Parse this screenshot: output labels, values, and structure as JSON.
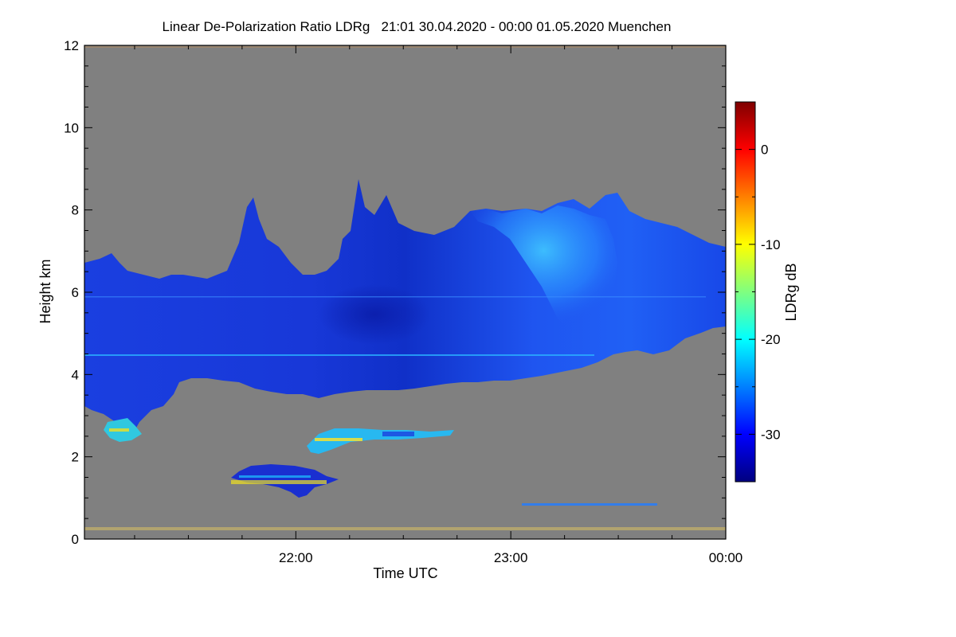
{
  "chart_data": {
    "type": "heatmap",
    "title": "Linear De-Polarization Ratio LDRg   21:01 30.04.2020 - 00:00 01.05.2020 Muenchen",
    "xlabel": "Time UTC",
    "ylabel": "Height km",
    "x_ticks": [
      "22:00",
      "23:00",
      "00:00"
    ],
    "y_ticks": [
      "0",
      "2",
      "4",
      "6",
      "8",
      "10",
      "12"
    ],
    "ylim": [
      0,
      12
    ],
    "xlim": [
      "21:01",
      "00:00"
    ],
    "background_color": "#808080",
    "colorbar": {
      "label": "LDRg dB",
      "ticks": [
        "0",
        "-10",
        "-20",
        "-30"
      ],
      "range": [
        -35,
        5
      ],
      "colormap": "jet"
    },
    "features": [
      {
        "name": "main-cloud-layer",
        "time_start": "21:01",
        "time_end": "00:00",
        "height_base_km": [
          3.0,
          5.3
        ],
        "height_top_km": [
          6.5,
          8.3
        ],
        "ldr_db": -30
      },
      {
        "name": "cloud-top-bright-region",
        "time_start": "23:00",
        "time_end": "23:30",
        "height_km": [
          5.5,
          8.0
        ],
        "ldr_db": -22
      },
      {
        "name": "low-cloud-patch-1",
        "time_center": "22:00",
        "height_km": [
          1.2,
          1.8
        ],
        "ldr_db": -28
      },
      {
        "name": "low-cloud-patch-2",
        "time_center": "22:20",
        "height_km": [
          2.2,
          2.7
        ],
        "ldr_db": -18
      },
      {
        "name": "low-cloud-patch-3",
        "time_center": "21:10",
        "height_km": [
          2.4,
          3.1
        ],
        "ldr_db": -20
      },
      {
        "name": "near-ground-layer",
        "time_start": "23:00",
        "time_end": "23:40",
        "height_km": [
          0.8,
          0.85
        ],
        "ldr_db": -25
      },
      {
        "name": "ground-clutter",
        "time_start": "21:01",
        "time_end": "00:00",
        "height_km": [
          0.0,
          0.3
        ],
        "ldr_db": -10
      }
    ]
  }
}
